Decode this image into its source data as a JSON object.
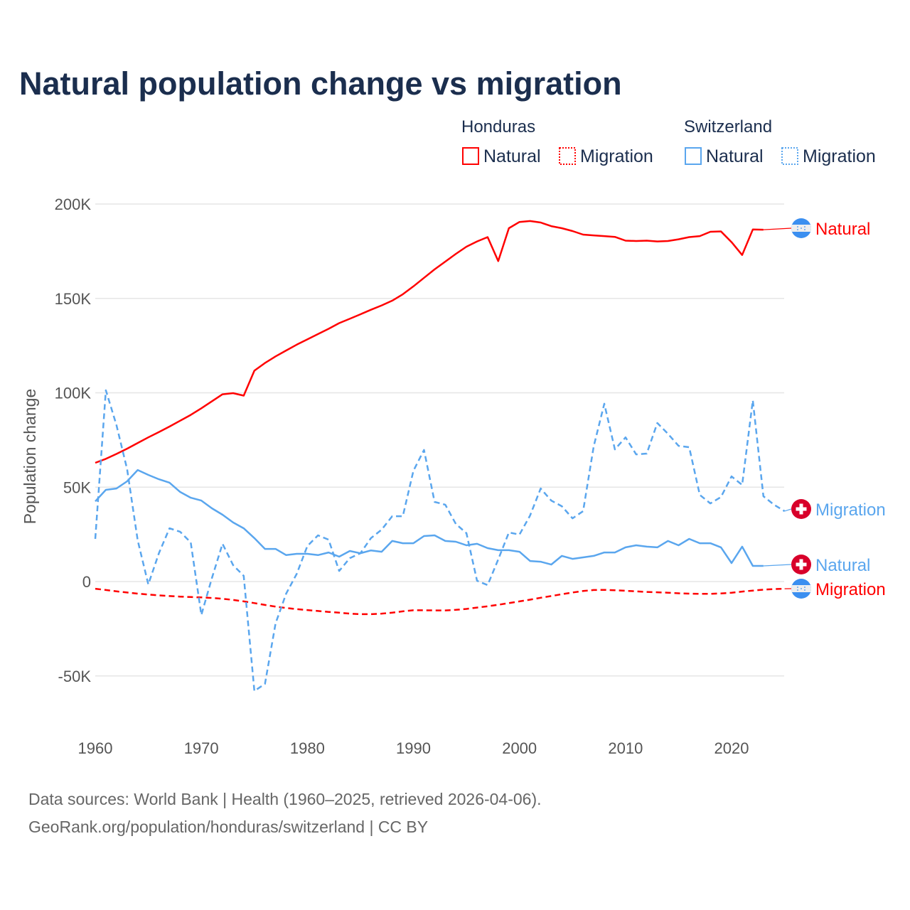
{
  "title": "Natural population change vs migration",
  "legend": {
    "groups": [
      {
        "name": "Honduras",
        "items": [
          "Natural",
          "Migration"
        ],
        "color": "#ff0000"
      },
      {
        "name": "Switzerland",
        "items": [
          "Natural",
          "Migration"
        ],
        "color": "#5aa6ee"
      }
    ]
  },
  "footer": {
    "line1": "Data sources: World Bank | Health (1960–2025, retrieved 2026-04-06).",
    "line2": "GeoRank.org/population/honduras/switzerland | CC BY"
  },
  "chart_data": {
    "type": "line",
    "title": "Natural population change vs migration",
    "xlabel": "",
    "ylabel": "Population change",
    "xlim": [
      1960,
      2025
    ],
    "ylim": [
      -80000,
      210000
    ],
    "x_ticks": [
      "1960",
      "1970",
      "1980",
      "1990",
      "2000",
      "2010",
      "2020"
    ],
    "y_ticks": [
      {
        "value": 200000,
        "label": "200K"
      },
      {
        "value": 150000,
        "label": "150K"
      },
      {
        "value": 100000,
        "label": "100K"
      },
      {
        "value": 50000,
        "label": "50K"
      },
      {
        "value": 0,
        "label": "0"
      },
      {
        "value": -50000,
        "label": "-50K"
      }
    ],
    "grid": true,
    "legend_position": "top-right",
    "x_start": 1960,
    "series": [
      {
        "name": "Honduras Natural",
        "country": "Honduras",
        "kind": "Natural",
        "end_label": "Natural",
        "color": "#ff0000",
        "dashed": false,
        "flag": "honduras-flag",
        "values": [
          62900,
          65000,
          67600,
          70400,
          73400,
          76400,
          79200,
          82100,
          85200,
          88300,
          91800,
          95500,
          99200,
          99800,
          98500,
          111700,
          115800,
          119300,
          122400,
          125500,
          128300,
          131100,
          133900,
          136900,
          139200,
          141600,
          144000,
          146300,
          148800,
          152200,
          156400,
          160900,
          165400,
          169500,
          173600,
          177400,
          180200,
          182500,
          169800,
          187200,
          190500,
          191000,
          190200,
          188300,
          187200,
          185700,
          183800,
          183400,
          183000,
          182600,
          180600,
          180400,
          180600,
          180200,
          180400,
          181300,
          182500,
          183000,
          185300,
          185500,
          179800,
          173000,
          186500,
          186400
        ]
      },
      {
        "name": "Honduras Migration",
        "country": "Honduras",
        "kind": "Migration",
        "end_label": "Migration",
        "color": "#ff0000",
        "dashed": true,
        "flag": "honduras-flag",
        "values": [
          -3800,
          -4500,
          -5200,
          -5800,
          -6400,
          -6900,
          -7300,
          -7700,
          -8000,
          -8200,
          -8400,
          -8700,
          -9100,
          -9700,
          -10500,
          -11400,
          -12400,
          -13300,
          -14000,
          -14600,
          -15100,
          -15600,
          -16100,
          -16500,
          -17000,
          -17300,
          -17300,
          -17000,
          -16500,
          -15800,
          -15200,
          -15200,
          -15300,
          -15300,
          -15000,
          -14500,
          -13800,
          -13100,
          -12300,
          -11400,
          -10500,
          -9600,
          -8600,
          -7700,
          -6700,
          -5800,
          -5000,
          -4500,
          -4400,
          -4600,
          -4900,
          -5200,
          -5500,
          -5700,
          -5900,
          -6200,
          -6400,
          -6500,
          -6500,
          -6300,
          -5900,
          -5300,
          -4800,
          -4300,
          -4000,
          -3800
        ]
      },
      {
        "name": "Switzerland Natural",
        "country": "Switzerland",
        "kind": "Natural",
        "end_label": "Natural",
        "color": "#5aa6ee",
        "dashed": false,
        "flag": "switzerland-flag",
        "values": [
          42500,
          48600,
          49300,
          53100,
          59100,
          56500,
          54200,
          52400,
          47500,
          44400,
          42900,
          38800,
          35400,
          31300,
          28200,
          23000,
          17300,
          17300,
          14000,
          14700,
          14700,
          14000,
          15400,
          13200,
          16200,
          15000,
          16500,
          15800,
          21500,
          20300,
          20300,
          24100,
          24500,
          21500,
          21100,
          19200,
          20000,
          17700,
          16600,
          16600,
          15800,
          10900,
          10500,
          9000,
          13600,
          12000,
          12800,
          13600,
          15400,
          15400,
          18100,
          19200,
          18500,
          18100,
          21500,
          19200,
          22600,
          20300,
          20300,
          18100,
          9800,
          18500,
          8300,
          8300
        ]
      },
      {
        "name": "Switzerland Migration",
        "country": "Switzerland",
        "kind": "Migration",
        "end_label": "Migration",
        "color": "#5aa6ee",
        "dashed": true,
        "flag": "switzerland-flag",
        "values": [
          22600,
          101300,
          82900,
          59500,
          21800,
          -1500,
          15000,
          28200,
          26400,
          20700,
          -17700,
          1900,
          20000,
          8700,
          3000,
          -58000,
          -54200,
          -22200,
          -6400,
          4100,
          18800,
          24500,
          22200,
          5600,
          12400,
          15000,
          23000,
          27500,
          34600,
          34600,
          58700,
          69700,
          42200,
          40700,
          30500,
          25600,
          400,
          -1900,
          11700,
          26000,
          24900,
          35000,
          49300,
          42900,
          39900,
          33500,
          37300,
          71600,
          94200,
          70000,
          76400,
          67400,
          67800,
          84000,
          78300,
          71900,
          71200,
          45900,
          41400,
          44800,
          55700,
          51200,
          96000,
          45200,
          40700,
          37300
        ]
      }
    ]
  }
}
